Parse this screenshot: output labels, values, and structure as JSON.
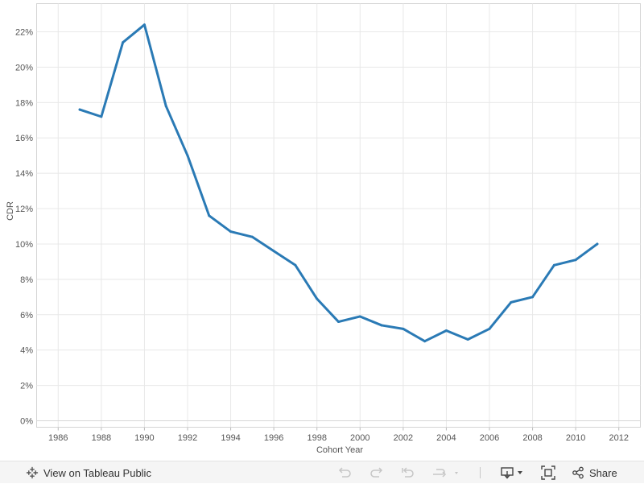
{
  "chart_data": {
    "type": "line",
    "xlabel": "Cohort Year",
    "ylabel": "CDR",
    "xlim": [
      1985,
      2013
    ],
    "ylim": [
      0,
      0.236
    ],
    "x_ticks": [
      1986,
      1988,
      1990,
      1992,
      1994,
      1996,
      1998,
      2000,
      2002,
      2004,
      2006,
      2008,
      2010,
      2012
    ],
    "y_ticks": [
      0,
      0.02,
      0.04,
      0.06,
      0.08,
      0.1,
      0.12,
      0.14,
      0.16,
      0.18,
      0.2,
      0.22
    ],
    "y_tick_labels": [
      "0%",
      "2%",
      "4%",
      "6%",
      "8%",
      "10%",
      "12%",
      "14%",
      "16%",
      "18%",
      "20%",
      "22%"
    ],
    "grid": true,
    "series": [
      {
        "name": "CDR",
        "color": "#2a7ab5",
        "x": [
          1987,
          1988,
          1989,
          1990,
          1991,
          1992,
          1993,
          1994,
          1995,
          1996,
          1997,
          1998,
          1999,
          2000,
          2001,
          2002,
          2003,
          2004,
          2005,
          2006,
          2007,
          2008,
          2009,
          2010,
          2011
        ],
        "y": [
          0.176,
          0.172,
          0.214,
          0.224,
          0.178,
          0.15,
          0.116,
          0.107,
          0.104,
          0.096,
          0.088,
          0.069,
          0.056,
          0.059,
          0.054,
          0.052,
          0.045,
          0.051,
          0.046,
          0.052,
          0.067,
          0.07,
          0.088,
          0.091,
          0.1
        ]
      }
    ]
  },
  "toolbar": {
    "view_label": "View on Tableau Public",
    "share_label": "Share"
  },
  "colors": {
    "line": "#2a7ab5",
    "grid": "#e8e8e8",
    "toolbar_bg": "#f5f5f5"
  }
}
